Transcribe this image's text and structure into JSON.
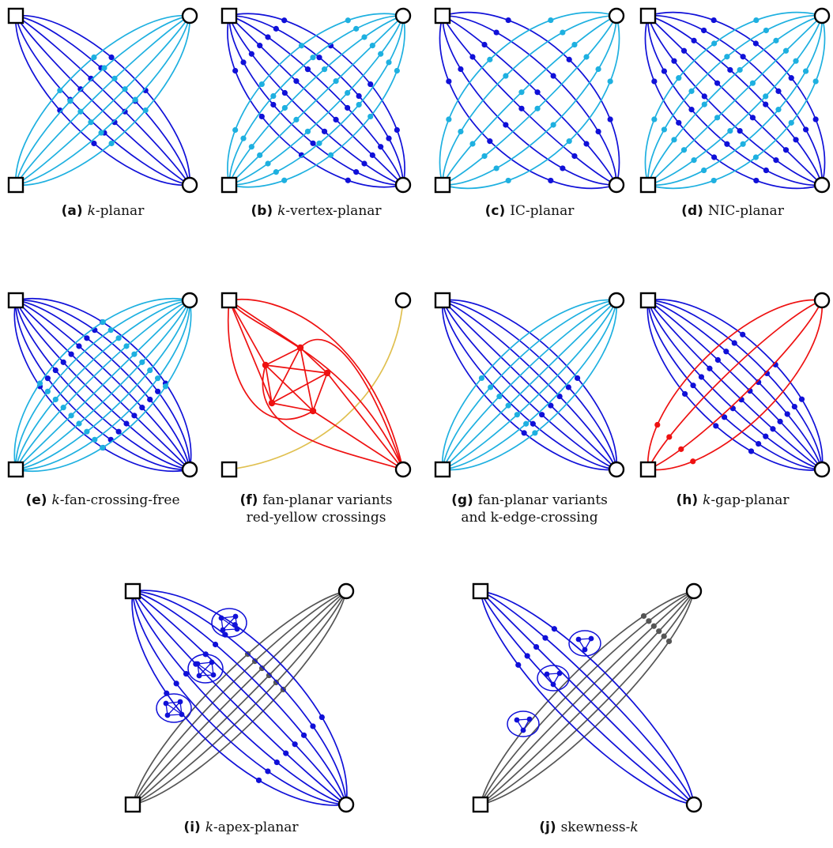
{
  "colors": {
    "blue": "#1010d8",
    "cyan": "#1eb0e0",
    "red": "#ee1111",
    "yellow": "#e0c050",
    "gray": "#555555",
    "ink": "#000000"
  },
  "node_shapes": {
    "left_nodes": "square",
    "right_nodes": "circle"
  },
  "panels": [
    {
      "label": "(a)",
      "var": "k",
      "rest": "-planar",
      "line2": ""
    },
    {
      "label": "(b)",
      "var": "k",
      "rest": "-vertex-planar",
      "line2": ""
    },
    {
      "label": "(c)",
      "var": "",
      "rest": "IC-planar",
      "line2": ""
    },
    {
      "label": "(d)",
      "var": "",
      "rest": "NIC-planar",
      "line2": ""
    },
    {
      "label": "(e)",
      "var": "k",
      "rest": "-fan-crossing-free",
      "line2": ""
    },
    {
      "label": "(f)",
      "var": "",
      "rest": "fan-planar variants",
      "line2": "red-yellow crossings"
    },
    {
      "label": "(g)",
      "var": "",
      "rest": "fan-planar variants",
      "line2": "and k-edge-crossing"
    },
    {
      "label": "(h)",
      "var": "k",
      "rest": "-gap-planar",
      "line2": ""
    },
    {
      "label": "(i)",
      "var": "k",
      "rest": "-apex-planar",
      "line2": ""
    },
    {
      "label": "(j)",
      "var": "",
      "rest": "skewness-",
      "var2": "k",
      "line2": ""
    }
  ]
}
